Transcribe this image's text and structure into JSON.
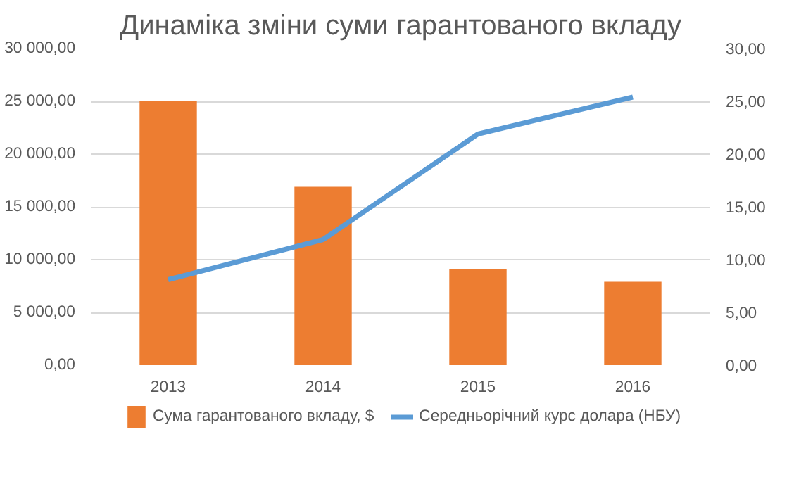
{
  "chart_data": {
    "type": "bar",
    "title": "Динаміка зміни суми гарантованого вкладу",
    "categories": [
      "2013",
      "2014",
      "2015",
      "2016"
    ],
    "series": [
      {
        "name": "Сума гарантованого вкладу, $",
        "color": "#ed7d31",
        "values": [
          25000,
          16900,
          9100,
          7900
        ]
      },
      {
        "name": "Середньорічний курс долара (НБУ)",
        "color": "#5b9bd5",
        "type": "line",
        "axis": "y2",
        "values": [
          8.1,
          11.9,
          21.9,
          25.4
        ]
      }
    ],
    "ylim": [
      0,
      30000
    ],
    "yticks": [
      {
        "value": 0,
        "label": "0,00"
      },
      {
        "value": 5000,
        "label": "5 000,00"
      },
      {
        "value": 10000,
        "label": "10 000,00"
      },
      {
        "value": 15000,
        "label": "15 000,00"
      },
      {
        "value": 20000,
        "label": "20 000,00"
      },
      {
        "value": 25000,
        "label": "25 000,00"
      },
      {
        "value": 30000,
        "label": "30 000,00"
      }
    ],
    "y2lim": [
      0,
      30
    ],
    "y2ticks": [
      {
        "value": 0,
        "label": "0,00"
      },
      {
        "value": 5,
        "label": "5,00"
      },
      {
        "value": 10,
        "label": "10,00"
      },
      {
        "value": 15,
        "label": "15,00"
      },
      {
        "value": 20,
        "label": "20,00"
      },
      {
        "value": 25,
        "label": "25,00"
      },
      {
        "value": 30,
        "label": "30,00"
      }
    ],
    "grid": "y",
    "legend": "bottom",
    "marker": "none",
    "line_style": "solid"
  }
}
